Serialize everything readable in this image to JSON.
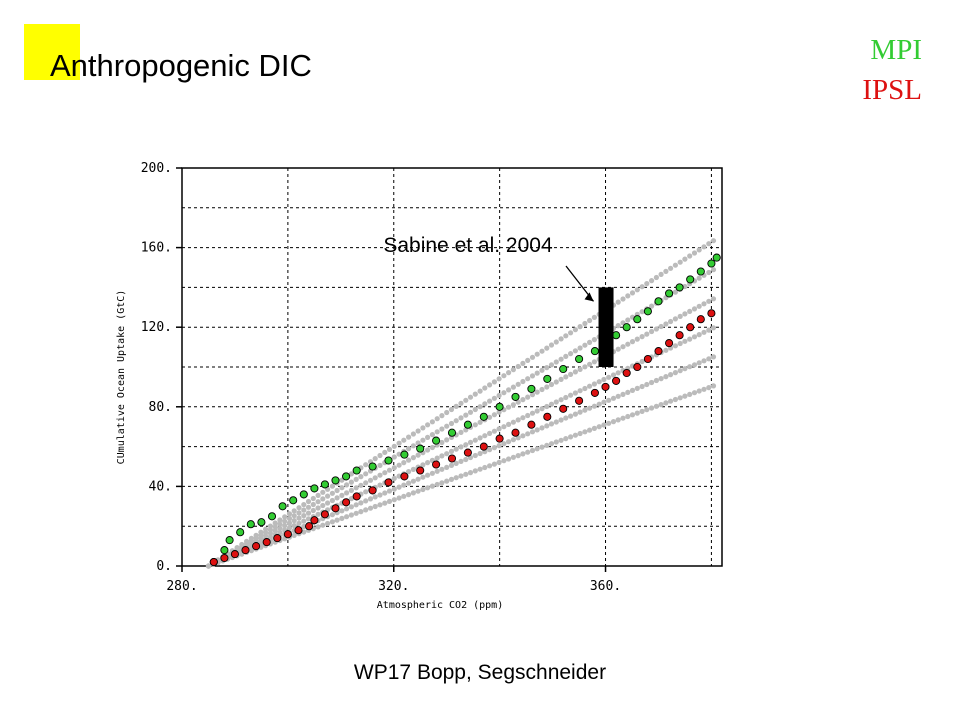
{
  "slide": {
    "title": "Anthropogenic DIC",
    "footer": "WP17 Bopp, Segschneider",
    "accent_color": "#ffff00"
  },
  "legend": {
    "items": [
      {
        "label": "MPI",
        "color": "#33cc33"
      },
      {
        "label": "IPSL",
        "color": "#dd1111"
      }
    ]
  },
  "chart_data": {
    "type": "scatter",
    "xlabel": "Atmospheric CO2 (ppm)",
    "ylabel": "CUmulative Ocean Uptake (GtC)",
    "xlim": [
      280,
      382
    ],
    "ylim": [
      0,
      200
    ],
    "xticks": [
      280,
      320,
      360
    ],
    "xtick_labels": [
      "280.",
      "320.",
      "360."
    ],
    "yticks": [
      0,
      40,
      80,
      120,
      160,
      200
    ],
    "ytick_labels": [
      "0.",
      "40.",
      "80.",
      "120.",
      "160.",
      "200."
    ],
    "grid": true,
    "series": [
      {
        "name": "MPI",
        "color": "#33cc33",
        "points": [
          [
            286,
            2
          ],
          [
            288,
            8
          ],
          [
            289,
            13
          ],
          [
            291,
            17
          ],
          [
            293,
            21
          ],
          [
            295,
            22
          ],
          [
            297,
            25
          ],
          [
            299,
            30
          ],
          [
            301,
            33
          ],
          [
            303,
            36
          ],
          [
            305,
            39
          ],
          [
            307,
            41
          ],
          [
            309,
            43
          ],
          [
            311,
            45
          ],
          [
            313,
            48
          ],
          [
            316,
            50
          ],
          [
            319,
            53
          ],
          [
            322,
            56
          ],
          [
            325,
            59
          ],
          [
            328,
            63
          ],
          [
            331,
            67
          ],
          [
            334,
            71
          ],
          [
            337,
            75
          ],
          [
            340,
            80
          ],
          [
            343,
            85
          ],
          [
            346,
            89
          ],
          [
            349,
            94
          ],
          [
            352,
            99
          ],
          [
            355,
            104
          ],
          [
            358,
            108
          ],
          [
            360,
            112
          ],
          [
            362,
            116
          ],
          [
            364,
            120
          ],
          [
            366,
            124
          ],
          [
            368,
            128
          ],
          [
            370,
            133
          ],
          [
            372,
            137
          ],
          [
            374,
            140
          ],
          [
            376,
            144
          ],
          [
            378,
            148
          ],
          [
            380,
            152
          ],
          [
            381,
            155
          ]
        ]
      },
      {
        "name": "IPSL",
        "color": "#dd1111",
        "points": [
          [
            286,
            2
          ],
          [
            288,
            4
          ],
          [
            290,
            6
          ],
          [
            292,
            8
          ],
          [
            294,
            10
          ],
          [
            296,
            12
          ],
          [
            298,
            14
          ],
          [
            300,
            16
          ],
          [
            302,
            18
          ],
          [
            304,
            20
          ],
          [
            305,
            23
          ],
          [
            307,
            26
          ],
          [
            309,
            29
          ],
          [
            311,
            32
          ],
          [
            313,
            35
          ],
          [
            316,
            38
          ],
          [
            319,
            42
          ],
          [
            322,
            45
          ],
          [
            325,
            48
          ],
          [
            328,
            51
          ],
          [
            331,
            54
          ],
          [
            334,
            57
          ],
          [
            337,
            60
          ],
          [
            340,
            64
          ],
          [
            343,
            67
          ],
          [
            346,
            71
          ],
          [
            349,
            75
          ],
          [
            352,
            79
          ],
          [
            355,
            83
          ],
          [
            358,
            87
          ],
          [
            360,
            90
          ],
          [
            362,
            93
          ],
          [
            364,
            97
          ],
          [
            366,
            100
          ],
          [
            368,
            104
          ],
          [
            370,
            108
          ],
          [
            372,
            112
          ],
          [
            374,
            116
          ],
          [
            376,
            120
          ],
          [
            378,
            124
          ],
          [
            380,
            127
          ]
        ]
      }
    ],
    "background_band_color": "#bbbbbb",
    "observation_bar": {
      "x": 360,
      "y_low": 100,
      "y_high": 140,
      "color": "#000000"
    },
    "annotation": {
      "text": "Sabine et al. 2004",
      "target": [
        360,
        138
      ]
    }
  }
}
